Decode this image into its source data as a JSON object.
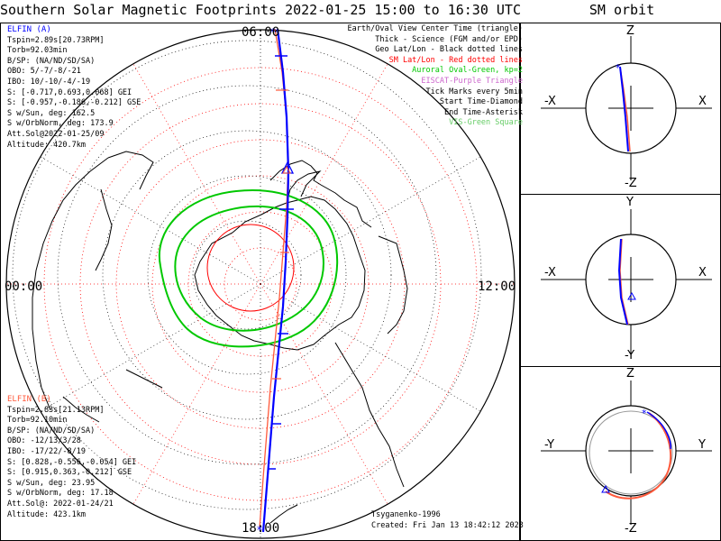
{
  "title": "Southern Solar Magnetic Footprints 2022-01-25 15:00 to 16:30 UTC",
  "orbit_title": "SM orbit",
  "colors": {
    "elfin_a": "#0000ff",
    "elfin_b": "#ff5a3c",
    "aurora": "#00c800",
    "geo": "#000000",
    "sm": "#ff0000",
    "eiscat": "#cc66cc",
    "vis": "#66cc66"
  },
  "legend": [
    {
      "text": "Earth/Oval View Center Time (triangle)",
      "color": "#000000"
    },
    {
      "text": "Thick - Science (FGM and/or EPD)",
      "color": "#000000"
    },
    {
      "text": "Geo Lat/Lon - Black dotted lines",
      "color": "#000000"
    },
    {
      "text": "SM Lat/Lon - Red dotted lines",
      "color": "#ff0000"
    },
    {
      "text": "Auroral Oval-Green, kp=2",
      "color": "#00c800"
    },
    {
      "text": "EISCAT-Purple Triangle",
      "color": "#cc66cc"
    },
    {
      "text": "Tick Marks every 5min",
      "color": "#000000"
    },
    {
      "text": "Start Time-Diamond",
      "color": "#000000"
    },
    {
      "text": "End Time-Asterisk",
      "color": "#000000"
    },
    {
      "text": "VIS-Green Square",
      "color": "#66cc66"
    }
  ],
  "elfin_a": {
    "label": "ELFIN (A)",
    "lines": [
      "Tspin=2.89s[20.73RPM]",
      "Torb=92.03min",
      "B/SP: (NA/ND/SD/SA)",
      "OBO: 5/-7/-8/-21",
      "IBO: 10/-10/-4/-19",
      "S: [-0.717,0.693,0.068] GEI",
      "S: [-0.957,-0.186,-0.212] GSE",
      "S w/Sun, deg: 162.5",
      "S w/OrbNorm, deg: 173.9",
      "Att.Sol@2022-01-25/09",
      "Altitude: 420.7km"
    ]
  },
  "elfin_b": {
    "label": "ELFIN (B)",
    "lines": [
      "Tspin=2.83s[21.13RPM]",
      "Torb=92.10min",
      "B/SP: (NA/ND/SD/SA)",
      "OBO: -12/13/3/28",
      "IBO: -17/22/-8/19",
      "S: [0.828,-0.556,-0.054] GEI",
      "S: [0.915,0.363,-0.212] GSE",
      "S w/Sun, deg: 23.95",
      "S w/OrbNorm, deg: 17.18",
      "Att.Sol@: 2022-01-24/21",
      "Altitude: 423.1km"
    ]
  },
  "credits": [
    "Tsyganenko-1996",
    "Created: Fri Jan 13 18:42:12 2023"
  ],
  "map_labels": {
    "top": "06:00",
    "left": "00:00",
    "right": "12:00",
    "bottom": "18:00"
  },
  "orbit_panels": [
    {
      "top": "Z",
      "bottom": "-Z",
      "left": "-X",
      "right": "X"
    },
    {
      "top": "Y",
      "bottom": "-Y",
      "left": "-X",
      "right": "X"
    },
    {
      "top": "Z",
      "bottom": "-Z",
      "left": "-Y",
      "right": "Y"
    }
  ]
}
